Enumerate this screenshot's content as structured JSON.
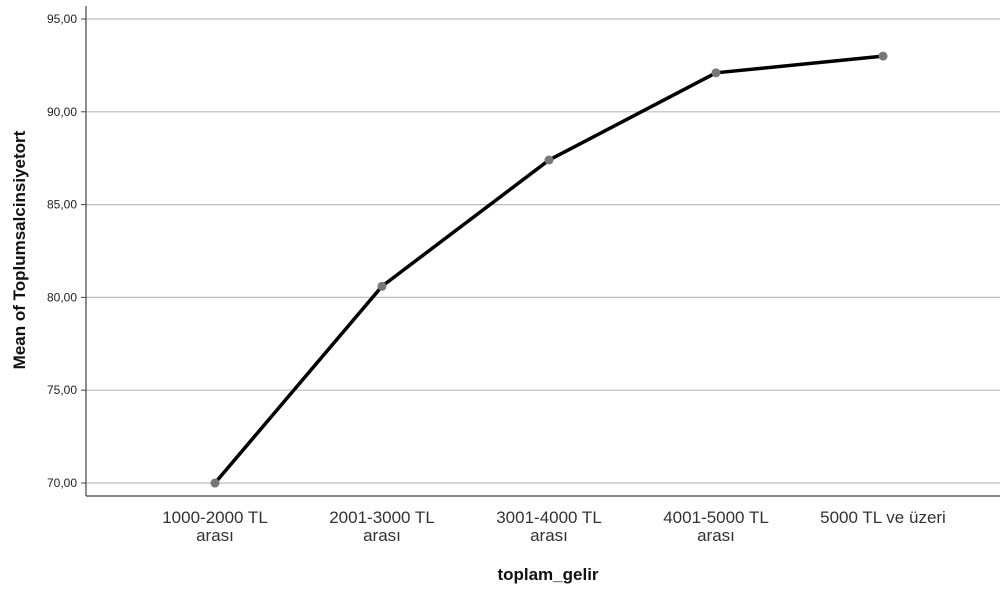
{
  "chart_data": {
    "type": "line",
    "categories": [
      [
        "1000-2000 TL",
        "arası"
      ],
      [
        "2001-3000 TL",
        "arası"
      ],
      [
        "3001-4000 TL",
        "arası"
      ],
      [
        "4001-5000 TL",
        "arası"
      ],
      [
        "5000 TL ve üzeri"
      ]
    ],
    "series": [
      {
        "values": [
          70.0,
          80.6,
          87.4,
          92.1,
          93.0
        ]
      }
    ],
    "y_ticks": [
      "70,00",
      "75,00",
      "80,00",
      "85,00",
      "90,00",
      "95,00"
    ],
    "y_tick_values": [
      70,
      75,
      80,
      85,
      90,
      95
    ],
    "ylim": [
      69.3,
      95.7
    ],
    "xlabel": "toplam_gelir",
    "ylabel": "Mean of Toplumsalcinsiyetort",
    "grid": "horizontal",
    "colors": {
      "line": "#000000",
      "marker": "#777777",
      "grid": "#bdbdbd",
      "axis": "#444444"
    }
  }
}
